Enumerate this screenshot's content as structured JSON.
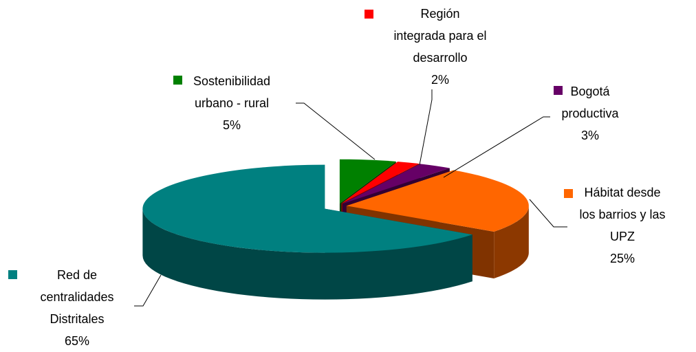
{
  "chart_data": {
    "type": "pie3d",
    "categories": [
      "Sostenibilidad\nurbano - rural",
      "Región\nintegrada para el\ndesarrollo",
      "Bogotá\nproductiva",
      "Hábitat desde\nlos barrios y las\nUPZ",
      "Red de\ncentralidades\nDistritales"
    ],
    "values": [
      5,
      2,
      3,
      25,
      65
    ],
    "value_labels": [
      "5%",
      "2%",
      "3%",
      "25%",
      "65%"
    ],
    "colors": [
      "#008000",
      "#ff0000",
      "#660066",
      "#ff6600",
      "#008080"
    ]
  }
}
